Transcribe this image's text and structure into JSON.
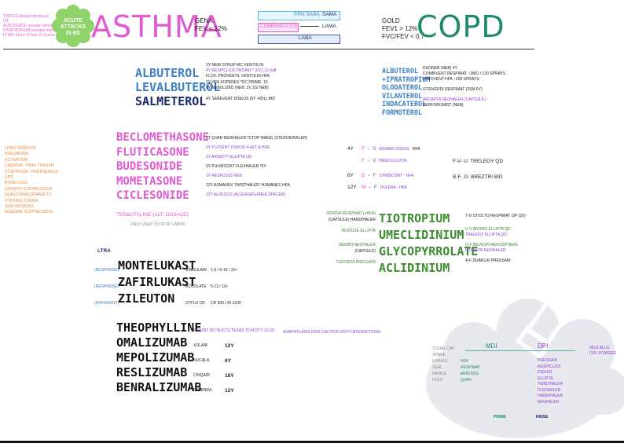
{
  "topleft": {
    "lines": [
      "TWOCS (kinda infectious)",
      "O2",
      "ALBUTEROL (usually nebulized)",
      "IPRATROPIUM (usually nebulized)",
      "IV MG SULF (Chok 15 Conso 1 Calc dose)"
    ],
    "badge": "ACUTE ATTACKS IN ED"
  },
  "asthma": {
    "title": "ASTHMA",
    "line1": "GENA",
    "line2": "FEV < 12%"
  },
  "legend": {
    "prn": "PRN SABA",
    "prn_right": "SAMA",
    "combined": "COMBINED ICS",
    "combined_right": "LAMA",
    "laba": "LABA"
  },
  "copd": {
    "title": "COPD",
    "line1": "GOLD",
    "line2": "FEV1 > 12%",
    "line3": "FVC/FEV < 0.7"
  },
  "beta": {
    "drugs": [
      "ALBUTEROL",
      "LEVALBUTEROL",
      "SALMETEROL"
    ],
    "notes": [
      "2Y NEB/ SYRUP   MC VENTOLIN",
      "4Y RESPICLICK PROAIR * (DC) 12 puff",
      "FLOV. PROVENTIL VENTOLIN HFA",
      "2Y HFA XOPENEX   *DC PRIME: 10",
      "6Y NEBULIZED   (NEB: 2V 2S/ NEB)",
      "4Y SEREVENT DISKUS (6Y -RDL) BID"
    ],
    "copd_drugs": [
      "ALBUTEROL",
      "+IPRATROPIUM",
      "OLODATEROL",
      "VILANTEROL",
      "INDACATEROL",
      "FORMOTEROL"
    ],
    "copd_notes": [
      "DUONEB (NEB) 4Y",
      "COMBIVENT RESPIMAT ~3MO / 120 SPRAYS",
      "ATROVENT HFA ~200 SPRAYS",
      "STRIVERDI RESPIMAT (2SM 6Y)",
      "ARCAPTA NEOHALER (CAPSULE)",
      "PERFOROMIST (NEB)"
    ]
  },
  "ics": {
    "drugs": [
      "BECLOMETHASONE",
      "FLUTICASONE",
      "BUDESONIDE",
      "MOMETASONE",
      "CICLESONIDE",
      "TERBUTALINE"
    ],
    "extra": "ONLY USED TO STOP LABOR",
    "notes": [
      "5Y QVAR REDIHALER *STOP IMAGE (STEROIDHALER)",
      "5Y FLOVENT DISKUS 4-ALT & HFA",
      "5Y ARNUITY ELLIPTA QD",
      "6Y PULMICORT FLEXHALER *6Y",
      "1Y RESPULES NEB",
      "12Y ASMANEX TWISTHALER *ASMANEX HFA",
      "12Y ALVESCO (ALLERGEN-FREE SPACER)"
    ],
    "terb": "TERBUTALINE (ALT. DOSAGE)"
  },
  "combos": [
    {
      "age": "4Y",
      "a": "F",
      "b": "S",
      "label": "ADVAIR DISKUS",
      "extra": "HFA"
    },
    {
      "age": "",
      "a": "F",
      "b": "V",
      "label": "BREO ELLIPTA",
      "extra": ""
    },
    {
      "age": "6Y",
      "a": "B",
      "b": "F",
      "label": "SYMBICORT - HFA",
      "extra": ""
    },
    {
      "age": "12Y",
      "a": "M",
      "b": "F",
      "label": "DULERA - HFA",
      "extra": ""
    }
  ],
  "combos_right": [
    "F-V- U: TRELEGY QD",
    "B-F- G: BREZTRI BID"
  ],
  "leftcol": {
    "title": "LONG TERM ICS",
    "lines": [
      "PNEUMONIA",
      "ACTIVATION",
      "CANDIDA - ORAL THRUSH",
      "DYSPHONIA - HOARSENESS",
      "URTI",
      "BONE LOSS",
      "GROWTH SUPPRESSION",
      "GLAUCOMA/CATARACTS",
      "HYPERGLYCEMIA",
      "SKIN BRUISING",
      "ADRENAL SUPPRESSION"
    ]
  },
  "lama": {
    "drugs": [
      "TIOTROPIUM",
      "UMECLIDINIUM",
      "GLYCOPYRROLATE",
      "ACLIDINIUM"
    ],
    "left": [
      "SPIRIVA RESPIMAT (+HFA)",
      "INCRUSE ELLIPTA",
      "SEEBRI NEOHALER",
      "TUDORZA PRESSAIR"
    ],
    "left2": [
      "(CAPSULE) HANDIHALER",
      "",
      "(CAPSULE)",
      ""
    ],
    "right": [
      "T-O STIOLTO RESPIMAT (2P QD)",
      "U-V ANORO ELLIPTA QD",
      "G-F BEVESPI AEROSPHERE",
      "A-F DUAKLIR PRESSAIR"
    ],
    "right2": [
      "",
      "TRELEGY ELLIPTA QD",
      "UTIBRON NEOHALER",
      ""
    ]
  },
  "ltra": {
    "title": "LTRA",
    "drugs": [
      "MONTELUKAST",
      "ZAFIRLUKAST",
      "ZILEUTON"
    ],
    "tags": [
      "(RESPONSE)",
      "(RESPONSE)",
      "(DIFFERENT)"
    ],
    "brands": [
      "SINGULAIR",
      "ACCOLATE",
      "ZYFLO CR"
    ],
    "ages": [
      "1-5 / 6-14 / 15+",
      "5-11 / 12+",
      "CR 600 / IR 1200"
    ]
  },
  "bio": {
    "drugs": [
      "THEOPHYLLINE",
      "OMALIZUMAB",
      "MEPOLIZUMAB",
      "RESLIZUMAB",
      "BENRALIZUMAB"
    ],
    "brands": [
      "",
      "XOLAIR",
      "NUCALA",
      "CINQAIR",
      "FASENRA"
    ],
    "ages": [
      "",
      "12Y",
      "6Y",
      "18Y",
      "12Y"
    ],
    "theo": "S-DONT DO INJCTS    TEXAS TOXICITY 10-20",
    "theo2": "ANAPHYLAXIS RISK    CAUTION WITH INTERACTIONS"
  },
  "cloud": {
    "mdi": "MDI",
    "dpi": "DPI",
    "left": [
      "CLEAN CAP",
      "SHAKE",
      "EXHALE",
      "SEAL",
      "INHALE",
      "HOLD"
    ],
    "mdi_items": [
      "HFA",
      "RESPIMAT",
      "AEROSOL",
      "QVAR"
    ],
    "dpi_items": [
      "PRESSAIR",
      "RESPICLICK",
      "DISKUS",
      "ELLIPTA",
      "TWISTHALER",
      "FLEXHALER",
      "HANDIHALER",
      "NEOHALER"
    ],
    "right": [
      "MILK ALLG",
      "DRY POWDER"
    ],
    "prime": "PRIME",
    "rinse": "RINSE"
  }
}
